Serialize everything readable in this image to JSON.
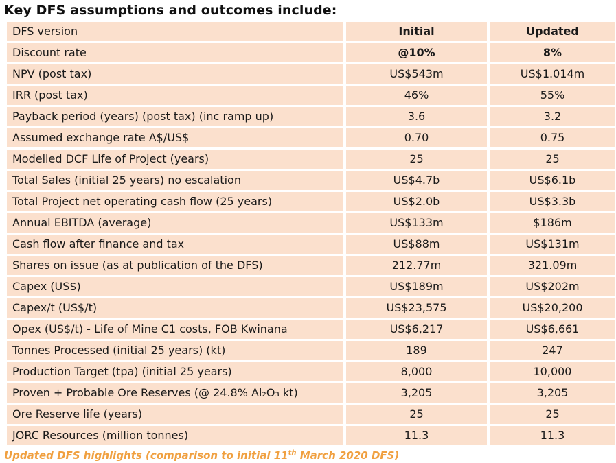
{
  "heading": "Key DFS assumptions and outcomes include:",
  "columns": {
    "metric": "DFS version",
    "initial": "Initial",
    "updated": "Updated"
  },
  "rows": [
    {
      "metric": "Discount rate",
      "initial": "@10%",
      "updated": "8%"
    },
    {
      "metric": "NPV (post tax)",
      "initial": "US$543m",
      "updated": "US$1.014m"
    },
    {
      "metric": "IRR (post tax)",
      "initial": "46%",
      "updated": "55%"
    },
    {
      "metric": "Payback period (years) (post tax) (inc ramp up)",
      "initial": "3.6",
      "updated": "3.2"
    },
    {
      "metric": "Assumed exchange rate A$/US$",
      "initial": "0.70",
      "updated": "0.75"
    },
    {
      "metric": "Modelled DCF Life of Project (years)",
      "initial": "25",
      "updated": "25"
    },
    {
      "metric": "Total Sales (initial 25 years) no escalation",
      "initial": "US$4.7b",
      "updated": "US$6.1b"
    },
    {
      "metric": "Total Project net operating cash flow (25 years)",
      "initial": "US$2.0b",
      "updated": "US$3.3b"
    },
    {
      "metric": "Annual EBITDA (average)",
      "initial": "US$133m",
      "updated": "$186m"
    },
    {
      "metric": "Cash flow after finance and tax",
      "initial": "US$88m",
      "updated": "US$131m"
    },
    {
      "metric": "Shares on issue (as at publication of the DFS)",
      "initial": "212.77m",
      "updated": "321.09m"
    },
    {
      "metric": "Capex (US$)",
      "initial": "US$189m",
      "updated": "US$202m"
    },
    {
      "metric": "Capex/t (US$/t)",
      "initial": "US$23,575",
      "updated": "US$20,200"
    },
    {
      "metric": "Opex (US$/t) - Life of Mine C1 costs, FOB Kwinana",
      "initial": "US$6,217",
      "updated": "US$6,661"
    },
    {
      "metric": "Tonnes Processed (initial 25 years) (kt)",
      "initial": "189",
      "updated": "247"
    },
    {
      "metric": "Production Target (tpa) (initial 25 years)",
      "initial": "8,000",
      "updated": "10,000"
    },
    {
      "metric": "Proven + Probable Ore Reserves (@ 24.8% Al₂O₃ kt)",
      "initial": "3,205",
      "updated": "3,205"
    },
    {
      "metric": "Ore Reserve life (years)",
      "initial": "25",
      "updated": "25"
    },
    {
      "metric": "JORC Resources (million tonnes)",
      "initial": "11.3",
      "updated": "11.3"
    }
  ],
  "caption": {
    "before": "Updated DFS highlights (comparison to initial 11",
    "sup": "th",
    "after": " March 2020 DFS)"
  },
  "colors": {
    "cell_background": "#fbe0cd",
    "caption": "#f0a040"
  }
}
